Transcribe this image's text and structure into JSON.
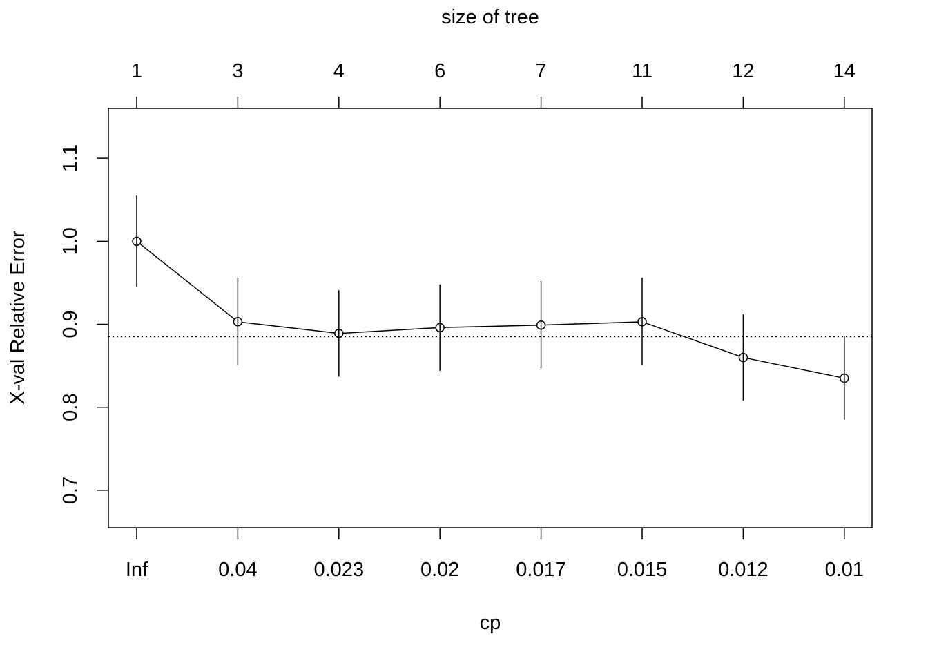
{
  "chart_data": {
    "type": "line",
    "title": "",
    "top_axis_title": "size of tree",
    "xlabel": "cp",
    "ylabel": "X-val Relative Error",
    "size_of_tree": [
      "1",
      "3",
      "4",
      "6",
      "7",
      "11",
      "12",
      "14"
    ],
    "categories": [
      "Inf",
      "0.04",
      "0.023",
      "0.02",
      "0.017",
      "0.015",
      "0.012",
      "0.01"
    ],
    "values": [
      1.0,
      0.903,
      0.889,
      0.896,
      0.899,
      0.903,
      0.86,
      0.835
    ],
    "error_low": [
      0.945,
      0.851,
      0.837,
      0.844,
      0.847,
      0.851,
      0.808,
      0.785
    ],
    "error_high": [
      1.055,
      0.956,
      0.941,
      0.948,
      0.952,
      0.956,
      0.912,
      0.886
    ],
    "reference_line": 0.885,
    "ylim": [
      0.655,
      1.16
    ],
    "yticks": [
      "0.7",
      "0.8",
      "0.9",
      "1.0",
      "1.1"
    ],
    "grid": false,
    "legend": "none",
    "colors": {
      "line": "#000000",
      "background": "#ffffff"
    }
  }
}
